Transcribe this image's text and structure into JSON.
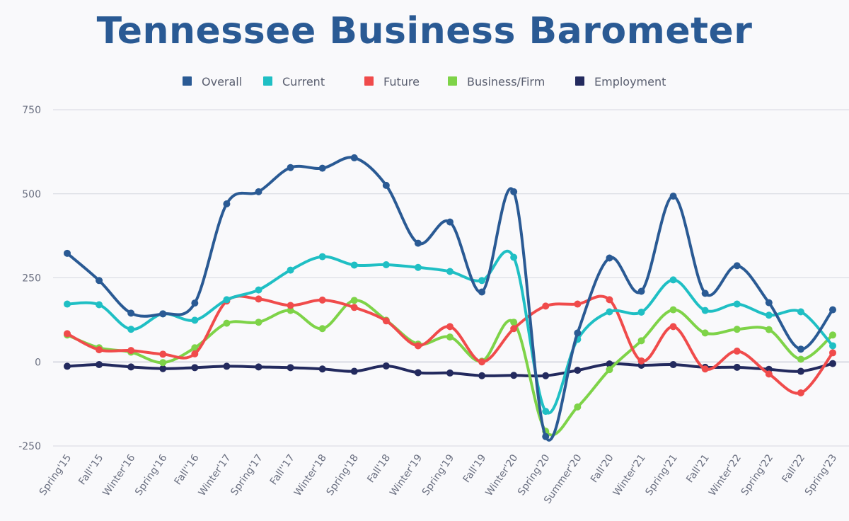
{
  "chart_data": {
    "type": "line",
    "title": "Tennessee Business Barometer",
    "xlabel": "",
    "ylabel": "",
    "ylim": [
      -250,
      750
    ],
    "yticks": [
      750,
      500,
      250,
      0,
      -250
    ],
    "grid": true,
    "legend_placement": "top-center",
    "categories": [
      "Spring'15",
      "Fall''15",
      "Winter'16",
      "Spring'16",
      "Fall''16",
      "Winter'17",
      "Spring'17",
      "Fall''17",
      "Winter'18",
      "Spring'18",
      "Fall'18",
      "Winter'19",
      "Spring'19",
      "Fall'19",
      "Winter'20",
      "Spring'20",
      "Summer'20",
      "Fall'20",
      "Winter'21",
      "Spring'21",
      "Fall'21",
      "Winter'22",
      "Spring'22",
      "Fall'22",
      "Spring'23"
    ],
    "series": [
      {
        "name": "Overall",
        "color": "#2a5a94",
        "values": [
          323,
          242,
          145,
          143,
          175,
          470,
          506,
          578,
          576,
          607,
          525,
          353,
          416,
          208,
          506,
          -222,
          86,
          309,
          210,
          493,
          204,
          286,
          176,
          38,
          155
        ]
      },
      {
        "name": "Current",
        "color": "#1fbfc4",
        "values": [
          172,
          170,
          97,
          143,
          124,
          185,
          214,
          273,
          313,
          288,
          289,
          281,
          269,
          242,
          311,
          -147,
          67,
          149,
          148,
          244,
          153,
          172,
          139,
          149,
          48
        ]
      },
      {
        "name": "Future",
        "color": "#f04b4b",
        "values": [
          84,
          36,
          34,
          23,
          24,
          181,
          187,
          168,
          184,
          162,
          122,
          48,
          105,
          0,
          99,
          166,
          172,
          185,
          3,
          105,
          -21,
          32,
          -36,
          -92,
          27
        ]
      },
      {
        "name": "Business/Firm",
        "color": "#7ed348",
        "values": [
          80,
          42,
          29,
          -2,
          42,
          115,
          118,
          153,
          99,
          183,
          124,
          53,
          74,
          2,
          118,
          -206,
          -134,
          -23,
          63,
          155,
          86,
          97,
          96,
          8,
          80
        ]
      },
      {
        "name": "Employment",
        "color": "#232a5e",
        "values": [
          -13,
          -8,
          -15,
          -20,
          -17,
          -13,
          -15,
          -17,
          -21,
          -28,
          -12,
          -32,
          -33,
          -41,
          -40,
          -41,
          -25,
          -6,
          -10,
          -8,
          -16,
          -16,
          -22,
          -28,
          -5
        ]
      }
    ]
  }
}
